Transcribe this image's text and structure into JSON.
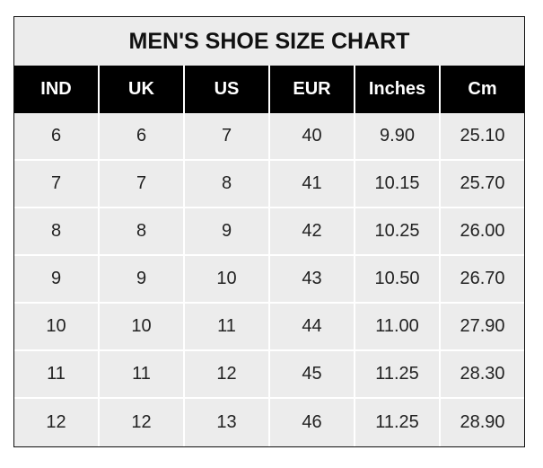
{
  "chart_data": {
    "type": "table",
    "title": "MEN'S SHOE SIZE CHART",
    "columns": [
      "IND",
      "UK",
      "US",
      "EUR",
      "Inches",
      "Cm"
    ],
    "rows": [
      [
        "6",
        "6",
        "7",
        "40",
        "9.90",
        "25.10"
      ],
      [
        "7",
        "7",
        "8",
        "41",
        "10.15",
        "25.70"
      ],
      [
        "8",
        "8",
        "9",
        "42",
        "10.25",
        "26.00"
      ],
      [
        "9",
        "9",
        "10",
        "43",
        "10.50",
        "26.70"
      ],
      [
        "10",
        "10",
        "11",
        "44",
        "11.00",
        "27.90"
      ],
      [
        "11",
        "11",
        "12",
        "45",
        "11.25",
        "28.30"
      ],
      [
        "12",
        "12",
        "13",
        "46",
        "11.25",
        "28.90"
      ]
    ],
    "colors": {
      "header_bg": "#000000",
      "header_text": "#ffffff",
      "cell_bg": "#ececec",
      "grid": "#ffffff"
    }
  }
}
